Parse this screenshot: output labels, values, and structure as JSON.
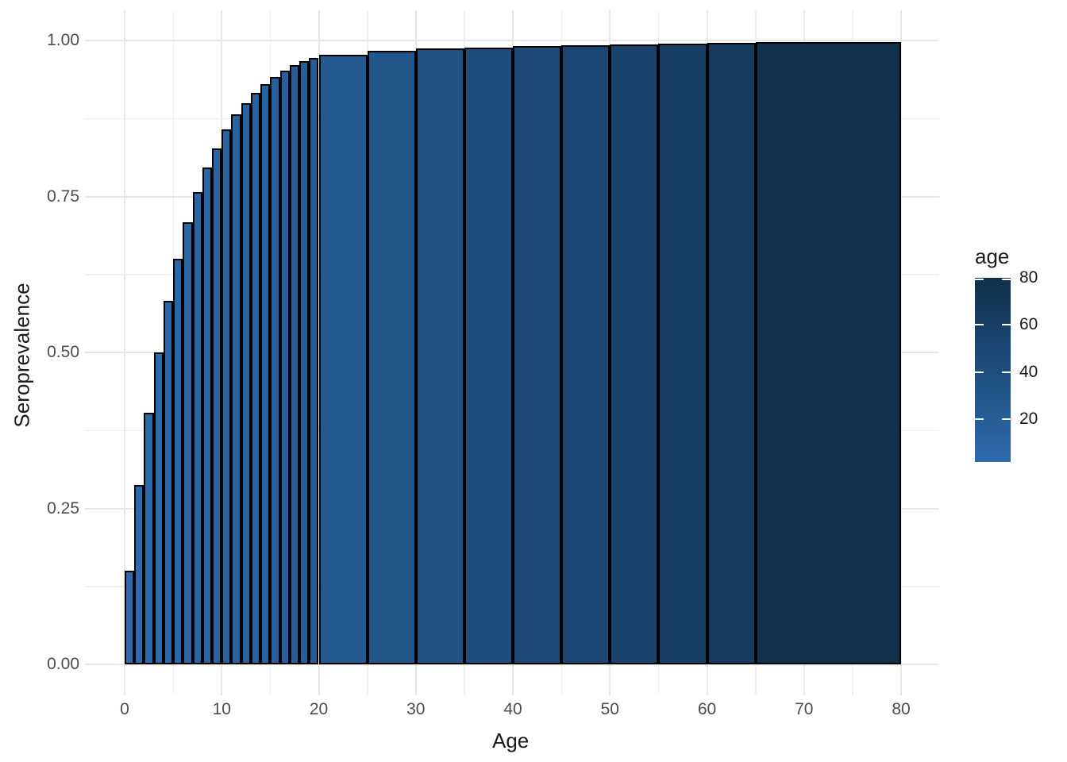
{
  "chart_data": {
    "type": "bar",
    "title": "",
    "xlabel": "Age",
    "ylabel": "Seroprevalence",
    "x_ticks": [
      0,
      10,
      20,
      30,
      40,
      50,
      60,
      70,
      80
    ],
    "x_minor_ticks": [
      5,
      15,
      25,
      35,
      45,
      55,
      65,
      75
    ],
    "y_ticks": [
      {
        "value": 0.0,
        "label": "0.00"
      },
      {
        "value": 0.25,
        "label": "0.25"
      },
      {
        "value": 0.5,
        "label": "0.50"
      },
      {
        "value": 0.75,
        "label": "0.75"
      },
      {
        "value": 1.0,
        "label": "1.00"
      }
    ],
    "y_minor_ticks": [
      0.125,
      0.375,
      0.625,
      0.875
    ],
    "xlim": [
      0,
      80
    ],
    "ylim": [
      0,
      1.0
    ],
    "grid": true,
    "bars": [
      {
        "from": 0,
        "to": 1,
        "value": 0.15
      },
      {
        "from": 1,
        "to": 2,
        "value": 0.288
      },
      {
        "from": 2,
        "to": 3,
        "value": 0.403
      },
      {
        "from": 3,
        "to": 4,
        "value": 0.5
      },
      {
        "from": 4,
        "to": 5,
        "value": 0.583
      },
      {
        "from": 5,
        "to": 6,
        "value": 0.65
      },
      {
        "from": 6,
        "to": 7,
        "value": 0.709
      },
      {
        "from": 7,
        "to": 8,
        "value": 0.757
      },
      {
        "from": 8,
        "to": 9,
        "value": 0.796
      },
      {
        "from": 9,
        "to": 10,
        "value": 0.827
      },
      {
        "from": 10,
        "to": 11,
        "value": 0.857
      },
      {
        "from": 11,
        "to": 12,
        "value": 0.882
      },
      {
        "from": 12,
        "to": 13,
        "value": 0.9
      },
      {
        "from": 13,
        "to": 14,
        "value": 0.916
      },
      {
        "from": 14,
        "to": 15,
        "value": 0.93
      },
      {
        "from": 15,
        "to": 16,
        "value": 0.941
      },
      {
        "from": 16,
        "to": 17,
        "value": 0.952
      },
      {
        "from": 17,
        "to": 18,
        "value": 0.96
      },
      {
        "from": 18,
        "to": 19,
        "value": 0.967
      },
      {
        "from": 19,
        "to": 20,
        "value": 0.972
      },
      {
        "from": 20,
        "to": 25,
        "value": 0.977
      },
      {
        "from": 25,
        "to": 30,
        "value": 0.984
      },
      {
        "from": 30,
        "to": 35,
        "value": 0.987
      },
      {
        "from": 35,
        "to": 40,
        "value": 0.989
      },
      {
        "from": 40,
        "to": 45,
        "value": 0.991
      },
      {
        "from": 45,
        "to": 50,
        "value": 0.993
      },
      {
        "from": 50,
        "to": 55,
        "value": 0.994
      },
      {
        "from": 55,
        "to": 60,
        "value": 0.995
      },
      {
        "from": 60,
        "to": 65,
        "value": 0.996
      },
      {
        "from": 65,
        "to": 80,
        "value": 0.997
      }
    ],
    "legend": {
      "title": "age",
      "min": 1,
      "max": 80,
      "ticks": [
        80,
        60,
        40,
        20
      ],
      "position": "right"
    },
    "colors": {
      "fill_low": "#2d6bae",
      "fill_high": "#10304b",
      "bar_border": "#000000",
      "grid_major": "#e7e7e7",
      "grid_minor": "#f0f0f0",
      "tick_text": "#4d4d4d",
      "title_text": "#1a1a1a",
      "legend_tick": "#ffffff"
    }
  }
}
